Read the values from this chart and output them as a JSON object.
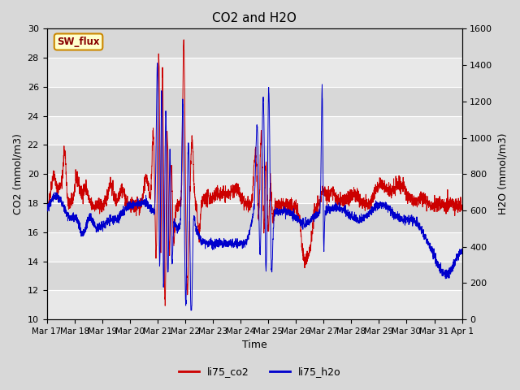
{
  "title": "CO2 and H2O",
  "xlabel": "Time",
  "ylabel_left": "CO2 (mmol/m3)",
  "ylabel_right": "H2O (mmol/m3)",
  "ylim_left": [
    10,
    30
  ],
  "ylim_right": [
    0,
    1600
  ],
  "yticks_left": [
    10,
    12,
    14,
    16,
    18,
    20,
    22,
    24,
    26,
    28,
    30
  ],
  "yticks_right": [
    0,
    200,
    400,
    600,
    800,
    1000,
    1200,
    1400,
    1600
  ],
  "co2_color": "#cc0000",
  "h2o_color": "#0000cc",
  "fig_bg_color": "#d8d8d8",
  "plot_bg_color": "#e8e8e8",
  "band_color_light": "#ebebeb",
  "band_color_dark": "#d8d8d8",
  "grid_color": "#c8c8c8",
  "annotation_text": "SW_flux",
  "annotation_bg": "#ffffcc",
  "annotation_border": "#cc8800",
  "legend_co2": "li75_co2",
  "legend_h2o": "li75_h2o",
  "xtick_labels": [
    "Mar 17",
    "Mar 18",
    "Mar 19",
    "Mar 20",
    "Mar 21",
    "Mar 22",
    "Mar 23",
    "Mar 24",
    "Mar 25",
    "Mar 26",
    "Mar 27",
    "Mar 28",
    "Mar 29",
    "Mar 30",
    "Mar 31",
    "Apr 1"
  ],
  "linewidth": 0.7
}
